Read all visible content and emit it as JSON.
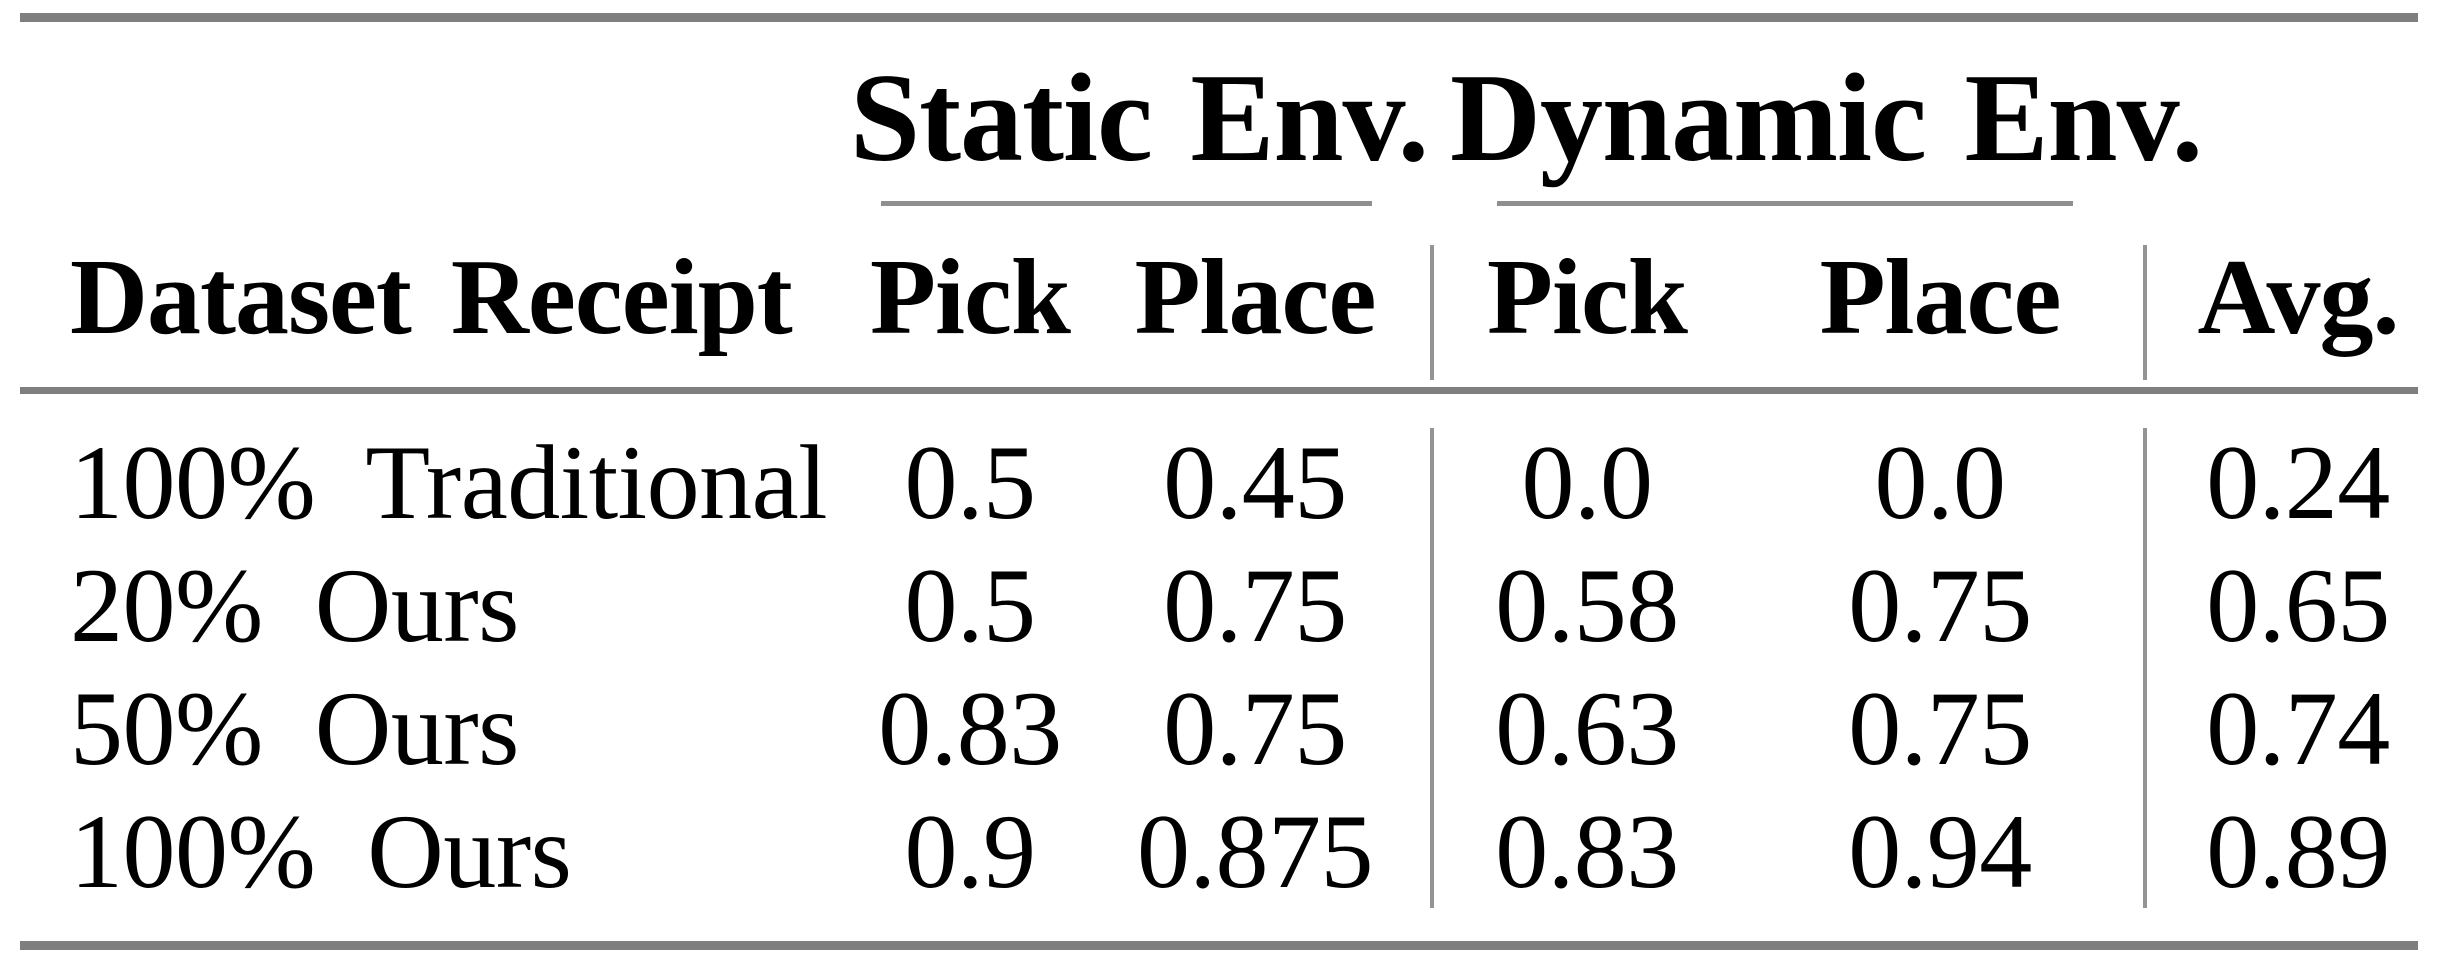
{
  "colors": {
    "background": "#ffffff",
    "text": "#000000",
    "rule_thick": "#7f7f7f",
    "rule_thin": "#8f8f8f",
    "rule_vertical": "#949494"
  },
  "table": {
    "group_headers": {
      "static": "Static Env.",
      "dynamic": "Dynamic Env."
    },
    "column_headers": {
      "dataset": "Dataset Receipt",
      "static_pick": "Pick",
      "static_place": "Place",
      "dynamic_pick": "Pick",
      "dynamic_place": "Place",
      "avg": "Avg."
    },
    "rows": [
      {
        "label": "100% Traditional",
        "static_pick": "0.5",
        "static_place": "0.45",
        "dynamic_pick": "0.0",
        "dynamic_place": "0.0",
        "avg": "0.24"
      },
      {
        "label": "20% Ours",
        "static_pick": "0.5",
        "static_place": "0.75",
        "dynamic_pick": "0.58",
        "dynamic_place": "0.75",
        "avg": "0.65"
      },
      {
        "label": "50% Ours",
        "static_pick": "0.83",
        "static_place": "0.75",
        "dynamic_pick": "0.63",
        "dynamic_place": "0.75",
        "avg": "0.74"
      },
      {
        "label": "100% Ours",
        "static_pick": "0.9",
        "static_place": "0.875",
        "dynamic_pick": "0.83",
        "dynamic_place": "0.94",
        "avg": "0.89"
      }
    ]
  },
  "chart_data": {
    "type": "table",
    "title": "",
    "columns": [
      "Dataset Receipt",
      "Static Env. Pick",
      "Static Env. Place",
      "Dynamic Env. Pick",
      "Dynamic Env. Place",
      "Avg."
    ],
    "rows": [
      [
        "100% Traditional",
        0.5,
        0.45,
        0.0,
        0.0,
        0.24
      ],
      [
        "20% Ours",
        0.5,
        0.75,
        0.58,
        0.75,
        0.65
      ],
      [
        "50% Ours",
        0.83,
        0.75,
        0.63,
        0.75,
        0.74
      ],
      [
        "100% Ours",
        0.9,
        0.875,
        0.83,
        0.94,
        0.89
      ]
    ]
  }
}
